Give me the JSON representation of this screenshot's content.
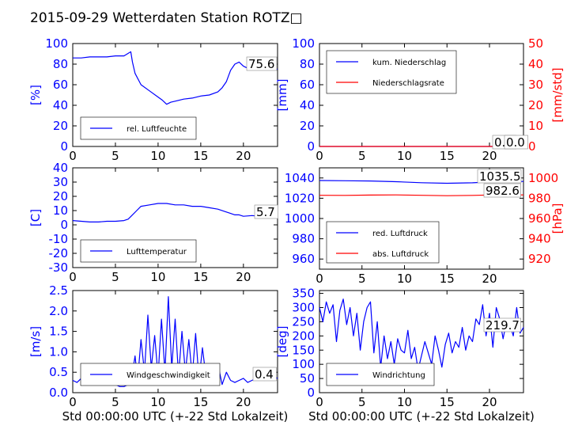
{
  "figure": {
    "title": "2015-09-29 Wetterdaten Station ROTZ□",
    "xlabel_common": "Std 00:00:00 UTC (+-22 Std Lokalzeit)",
    "colors": {
      "primary": "#0000ff",
      "secondary": "#ff0000",
      "axis": "#000000"
    }
  },
  "chart_data": [
    {
      "id": "humidity",
      "type": "line",
      "ylabel": "[%]",
      "xlim": [
        0,
        24
      ],
      "ylim": [
        0,
        100
      ],
      "xticks": [
        0,
        5,
        10,
        15,
        20
      ],
      "yticks": [
        0,
        20,
        40,
        60,
        80,
        100
      ],
      "legend": {
        "placement": "lower-left",
        "entries": [
          "rel. Luftfeuchte"
        ]
      },
      "annotation": "75.6",
      "series": [
        {
          "name": "rel. Luftfeuchte",
          "color": "#0000ff",
          "x": [
            0,
            1,
            2,
            3,
            4,
            5,
            6,
            6.8,
            7.0,
            7.3,
            8,
            9,
            10,
            10.5,
            11,
            11.5,
            12,
            13,
            14,
            15,
            16,
            17,
            17.5,
            18,
            18.5,
            19,
            19.5,
            20,
            20.5,
            21,
            22,
            23,
            24
          ],
          "y": [
            86,
            86,
            87,
            87,
            87,
            88,
            88,
            92,
            82,
            71,
            60,
            54,
            48,
            45,
            41,
            43,
            44,
            46,
            47,
            49,
            50,
            53,
            57,
            63,
            74,
            80,
            82,
            78,
            76,
            76,
            76,
            77,
            75
          ]
        }
      ]
    },
    {
      "id": "precipitation",
      "type": "line",
      "ylabel": "[mm]",
      "ylabel_right": "[mm/std]",
      "xlim": [
        0,
        24
      ],
      "ylim": [
        0,
        100
      ],
      "ylim_right": [
        0,
        50
      ],
      "xticks": [
        0,
        5,
        10,
        15,
        20
      ],
      "yticks": [
        0,
        20,
        40,
        60,
        80,
        100
      ],
      "yticks_right": [
        0,
        10,
        20,
        30,
        40,
        50
      ],
      "legend": {
        "placement": "upper-left",
        "entries": [
          "kum. Niederschlag",
          "Niederschlagsrate"
        ]
      },
      "annotation": "0.0",
      "annotation_secondary": "0.0",
      "series": [
        {
          "name": "kum. Niederschlag",
          "color": "#0000ff",
          "x": [
            0,
            24
          ],
          "y": [
            0,
            0
          ]
        },
        {
          "name": "Niederschlagsrate",
          "color": "#ff0000",
          "axis": "right",
          "x": [
            0,
            24
          ],
          "y": [
            0,
            0
          ]
        }
      ]
    },
    {
      "id": "temperature",
      "type": "line",
      "ylabel": "[C]",
      "xlim": [
        0,
        24
      ],
      "ylim": [
        -30,
        40
      ],
      "xticks": [
        0,
        5,
        10,
        15,
        20
      ],
      "yticks": [
        -30,
        -20,
        -10,
        0,
        10,
        20,
        30,
        40
      ],
      "legend": {
        "placement": "lower-left",
        "entries": [
          "Lufttemperatur"
        ]
      },
      "annotation": "5.7",
      "series": [
        {
          "name": "Lufttemperatur",
          "color": "#0000ff",
          "x": [
            0,
            1,
            2,
            3,
            4,
            5,
            6,
            6.5,
            7,
            7.5,
            8,
            9,
            10,
            11,
            12,
            13,
            14,
            15,
            16,
            17,
            18,
            18.5,
            19,
            19.5,
            20,
            21,
            22,
            23,
            24
          ],
          "y": [
            3,
            2.5,
            2,
            2,
            2.5,
            2.5,
            3,
            4,
            7,
            10,
            13,
            14,
            15,
            15,
            14,
            14,
            13,
            13,
            12,
            11,
            9,
            8,
            7,
            7,
            6,
            6.5,
            6,
            6,
            6
          ]
        }
      ]
    },
    {
      "id": "pressure",
      "type": "line",
      "ylabel_right": "[hPa]",
      "xlim": [
        0,
        24
      ],
      "ylim": [
        950,
        1050
      ],
      "ylim_right": [
        910,
        1010
      ],
      "xticks": [
        0,
        5,
        10,
        15,
        20
      ],
      "yticks": [
        960,
        980,
        1000,
        1020,
        1040
      ],
      "yticks_right": [
        920,
        940,
        960,
        980,
        1000
      ],
      "legend": {
        "placement": "lower-left",
        "entries": [
          "red. Luftdruck",
          "abs. Luftdruck"
        ]
      },
      "annotation": "1035.5",
      "annotation_secondary": "982.6",
      "series": [
        {
          "name": "red. Luftdruck",
          "color": "#0000ff",
          "x": [
            0,
            3,
            6,
            9,
            12,
            15,
            18,
            20,
            22,
            24
          ],
          "y": [
            1037.5,
            1037.3,
            1037,
            1036.3,
            1035.3,
            1034.8,
            1035.2,
            1036,
            1036.4,
            1036.6
          ]
        },
        {
          "name": "abs. Luftdruck",
          "color": "#ff0000",
          "axis": "right",
          "x": [
            0,
            3,
            6,
            9,
            12,
            15,
            18,
            20,
            22,
            24
          ],
          "y": [
            982.9,
            982.8,
            983.1,
            983.3,
            982.9,
            982.5,
            982.8,
            983.2,
            983.2,
            983.3
          ]
        }
      ]
    },
    {
      "id": "wind_speed",
      "type": "line",
      "ylabel": "[m/s]",
      "xlabel": "Std 00:00:00 UTC (+-22 Std Lokalzeit)",
      "xlim": [
        0,
        24
      ],
      "ylim": [
        0,
        2.5
      ],
      "xticks": [
        0,
        5,
        10,
        15,
        20
      ],
      "yticks": [
        0.0,
        0.5,
        1.0,
        1.5,
        2.0,
        2.5
      ],
      "legend": {
        "placement": "lower-left",
        "entries": [
          "Windgeschwindigkeit"
        ]
      },
      "annotation": "0.4",
      "series": [
        {
          "name": "Windgeschwindigkeit",
          "color": "#0000ff",
          "x": [
            0,
            0.5,
            1,
            1.5,
            2,
            2.5,
            3,
            3.5,
            4,
            4.5,
            5,
            5.5,
            6,
            6.5,
            7,
            7.3,
            7.6,
            8,
            8.4,
            8.8,
            9.2,
            9.6,
            10,
            10.4,
            10.8,
            11.2,
            11.6,
            12,
            12.4,
            12.8,
            13.2,
            13.6,
            14,
            14.4,
            14.8,
            15.2,
            15.6,
            16,
            16.5,
            17,
            17.5,
            18,
            18.5,
            19,
            19.5,
            20,
            20.5,
            21,
            21.5,
            22,
            22.5,
            23,
            23.5,
            24
          ],
          "y": [
            0.3,
            0.25,
            0.35,
            0.2,
            0.4,
            0.3,
            0.45,
            0.3,
            0.35,
            0.2,
            0.2,
            0.15,
            0.15,
            0.2,
            0.5,
            0.9,
            0.3,
            1.3,
            0.5,
            1.9,
            0.6,
            1.4,
            0.4,
            1.8,
            0.5,
            2.35,
            0.6,
            1.8,
            0.4,
            1.5,
            0.5,
            1.3,
            0.4,
            1.45,
            0.3,
            1.1,
            0.4,
            0.6,
            0.3,
            0.7,
            0.2,
            0.5,
            0.3,
            0.25,
            0.3,
            0.35,
            0.25,
            0.3,
            0.35,
            0.4,
            0.3,
            0.35,
            0.4,
            0.35
          ]
        }
      ]
    },
    {
      "id": "wind_direction",
      "type": "line",
      "ylabel": "[deg]",
      "xlabel": "Std 00:00:00 UTC (+-22 Std Lokalzeit)",
      "xlim": [
        0,
        24
      ],
      "ylim": [
        0,
        360
      ],
      "xticks": [
        0,
        5,
        10,
        15,
        20
      ],
      "yticks": [
        0,
        50,
        100,
        150,
        200,
        250,
        300,
        350
      ],
      "legend": {
        "placement": "lower-left",
        "entries": [
          "Windrichtung"
        ]
      },
      "annotation": "219.7",
      "series": [
        {
          "name": "Windrichtung",
          "color": "#0000ff",
          "x": [
            0,
            0.4,
            0.8,
            1.2,
            1.6,
            2,
            2.4,
            2.8,
            3.2,
            3.6,
            4,
            4.4,
            4.8,
            5.2,
            5.6,
            6,
            6.4,
            6.8,
            7.2,
            7.6,
            8,
            8.4,
            8.8,
            9.2,
            9.6,
            10,
            10.4,
            10.8,
            11.2,
            11.6,
            12,
            12.4,
            12.8,
            13.2,
            13.6,
            14,
            14.4,
            14.8,
            15.2,
            15.6,
            16,
            16.4,
            16.8,
            17.2,
            17.6,
            18,
            18.4,
            18.8,
            19.2,
            19.6,
            20,
            20.4,
            20.8,
            21.2,
            21.6,
            22,
            22.4,
            22.8,
            23.2,
            23.6,
            24
          ],
          "y": [
            300,
            250,
            320,
            280,
            310,
            180,
            290,
            330,
            240,
            300,
            200,
            280,
            150,
            250,
            300,
            320,
            140,
            250,
            90,
            200,
            120,
            180,
            100,
            190,
            150,
            140,
            220,
            120,
            160,
            80,
            130,
            180,
            140,
            100,
            200,
            150,
            90,
            170,
            210,
            140,
            180,
            160,
            230,
            150,
            200,
            180,
            260,
            240,
            310,
            200,
            280,
            160,
            300,
            260,
            190,
            250,
            240,
            200,
            300,
            210,
            230
          ]
        }
      ]
    }
  ]
}
